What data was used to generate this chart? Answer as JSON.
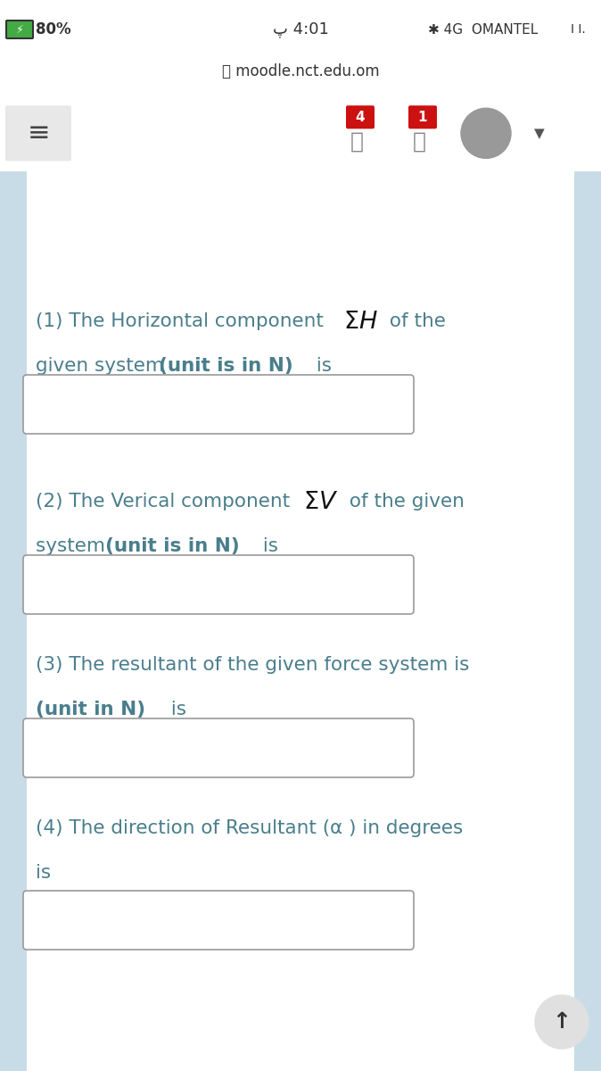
{
  "bg_color_white": "#ffffff",
  "bg_color_light": "#e8f2f8",
  "bg_color_nav": "#f0f0f0",
  "bg_color_outer": "#d0d0d0",
  "battery_text": "80%",
  "time_text": "پ 4:01",
  "network_text": "✱ 4G  OMANTEL",
  "url_text": "🔒 moodle.nct.edu.om",
  "blue_bar_color": "#1565c0",
  "text_color": "#4a7e8c",
  "text_color_dark": "#333333",
  "input_box_color": "#ffffff",
  "input_box_border": "#999999",
  "q1_line1_normal": "(1) The Horizontal component ",
  "q1_line1_math": "ΣH",
  "q1_line1_end": " of the",
  "q1_line2_normal": "given system  ",
  "q1_line2_bold": "(unit is in N)",
  "q1_line2_end": " is",
  "q2_line1_normal": "(2) The Verical component ",
  "q2_line1_math": "ΣV",
  "q2_line1_end": " of the given",
  "q2_line2_normal": "system  ",
  "q2_line2_bold": "(unit is in N)",
  "q2_line2_end": " is",
  "q3_line1": "(3) The resultant of the given force system is",
  "q3_line2_bold": "(unit in N)",
  "q3_line2_end": " is",
  "q4_line1": "(4) The direction of Resultant (α ) in degrees",
  "q4_line2": "is",
  "font_size": 15.5,
  "nav_badge4_color": "#cc1111",
  "nav_badge1_color": "#cc1111",
  "avatar_color": "#999999"
}
